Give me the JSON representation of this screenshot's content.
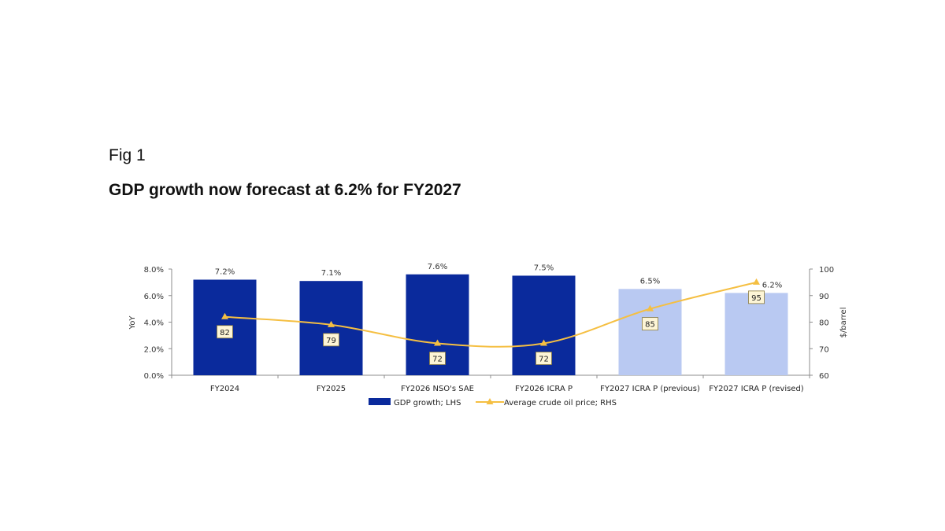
{
  "figure": {
    "label": "Fig 1",
    "title": "GDP growth now forecast at 6.2% for FY2027"
  },
  "colors": {
    "bar_actual": "#0a2a9c",
    "bar_projected": "#b9c9f2",
    "line": "#f5bf42",
    "axis": "#8c8c8c"
  },
  "chart_data": {
    "type": "bar",
    "categories": [
      "FY2024",
      "FY2025",
      "FY2026 NSO's SAE",
      "FY2026 ICRA P",
      "FY2027 ICRA P (previous)",
      "FY2027 ICRA P (revised)"
    ],
    "series": [
      {
        "name": "GDP growth; LHS",
        "type": "bar",
        "axis": "left",
        "values": [
          7.2,
          7.1,
          7.6,
          7.5,
          6.5,
          6.2
        ],
        "labels": [
          "7.2%",
          "7.1%",
          "7.6%",
          "7.5%",
          "6.5%",
          "6.2%"
        ],
        "projected": [
          false,
          false,
          false,
          false,
          true,
          true
        ]
      },
      {
        "name": "Average crude oil price; RHS",
        "type": "line",
        "axis": "right",
        "values": [
          82,
          79,
          72,
          72,
          85,
          95
        ],
        "labels": [
          "82",
          "79",
          "72",
          "72",
          "85",
          "95"
        ]
      }
    ],
    "y_left": {
      "label": "YoY",
      "ylim": [
        0,
        8
      ],
      "ticks": [
        "0.0%",
        "2.0%",
        "4.0%",
        "6.0%",
        "8.0%"
      ]
    },
    "y_right": {
      "label": "$/barrel",
      "ylim": [
        60,
        100
      ],
      "ticks": [
        "60",
        "70",
        "80",
        "90",
        "100"
      ]
    },
    "grid": false,
    "legend": "bottom"
  }
}
